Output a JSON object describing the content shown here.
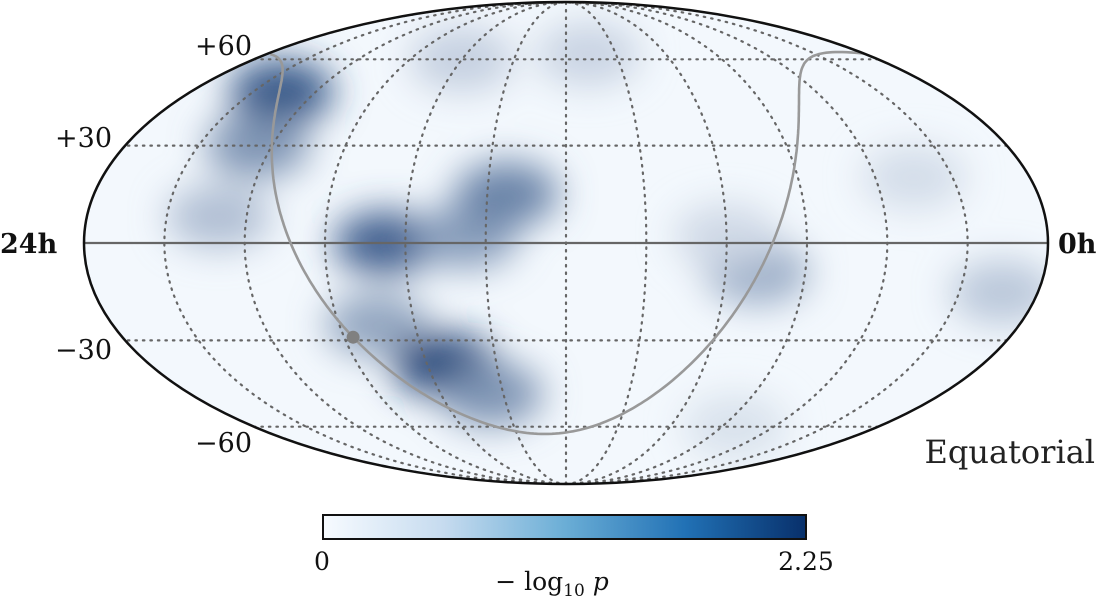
{
  "projection": "mollweide",
  "coordinate_system": "Equatorial",
  "ra_labels": {
    "left": "24h",
    "right": "0h"
  },
  "dec_labels": [
    "+60",
    "+30",
    "−30",
    "−60"
  ],
  "colorbar": {
    "min_label": "0",
    "max_label": "2.25",
    "range": [
      0,
      2.25
    ],
    "label": "− log10 p",
    "colors": [
      "#f7fbff",
      "#c6dbef",
      "#6baed6",
      "#2171b5",
      "#08306b"
    ]
  },
  "colors": {
    "grid": "#666666",
    "galactic_plane": "#999999",
    "outline": "#111111"
  },
  "hotspots": [
    {
      "ra_h": 21.1,
      "dec": 48,
      "value": 1.9
    },
    {
      "ra_h": 20.4,
      "dec": 30,
      "value": 1.2
    },
    {
      "ra_h": 20.7,
      "dec": 8,
      "value": 0.7
    },
    {
      "ra_h": 16.5,
      "dec": 0,
      "value": 1.8
    },
    {
      "ra_h": 14.5,
      "dec": 2,
      "value": 1.1
    },
    {
      "ra_h": 13.5,
      "dec": 15,
      "value": 1.4
    },
    {
      "ra_h": 17.0,
      "dec": -25,
      "value": 1.0
    },
    {
      "ra_h": 15.5,
      "dec": -38,
      "value": 2.1
    },
    {
      "ra_h": 14.4,
      "dec": -48,
      "value": 1.2
    },
    {
      "ra_h": 7.2,
      "dec": -9,
      "value": 0.9
    },
    {
      "ra_h": 8.0,
      "dec": 2,
      "value": 0.4
    },
    {
      "ra_h": 0.9,
      "dec": -15,
      "value": 0.6
    },
    {
      "ra_h": 3.0,
      "dec": 20,
      "value": 0.35
    },
    {
      "ra_h": 11.1,
      "dec": 62,
      "value": 0.45
    },
    {
      "ra_h": 5.5,
      "dec": -60,
      "value": 0.3
    },
    {
      "ra_h": 16.0,
      "dec": 60,
      "value": 0.5
    }
  ],
  "source_marker": {
    "ra_h": 17.76,
    "dec": -29.0
  }
}
